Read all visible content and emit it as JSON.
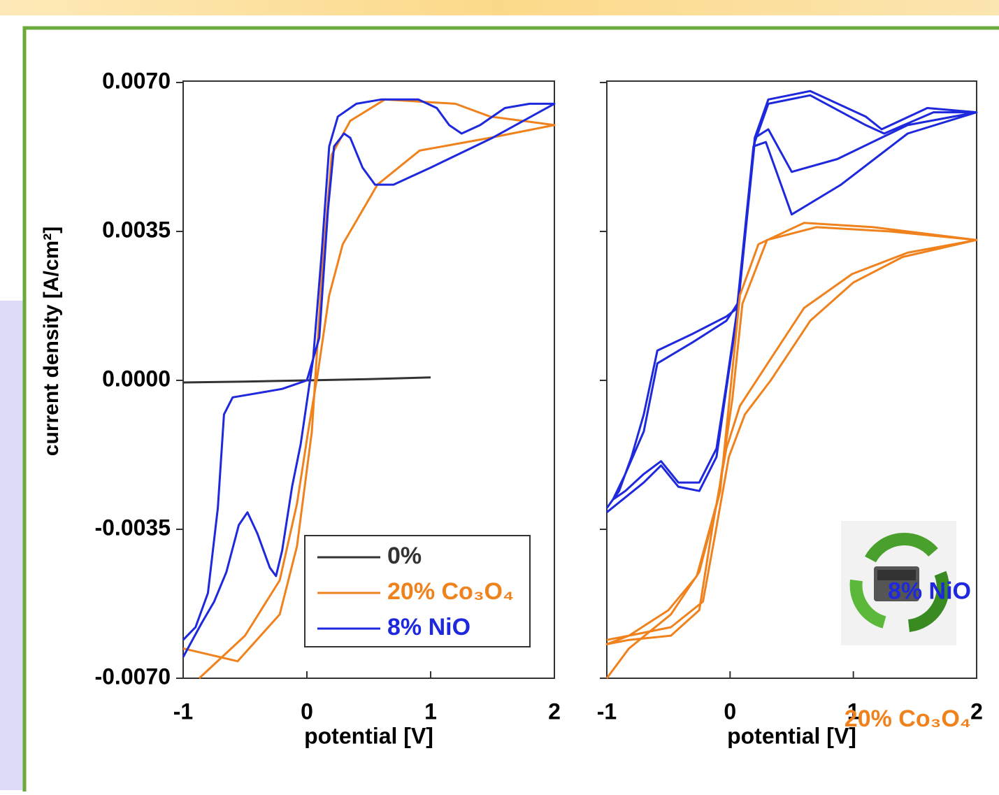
{
  "chart_data": [
    {
      "type": "line",
      "y_label": "current density [A/cm²]",
      "x_label": "potential [V]",
      "xlim": [
        -1,
        2
      ],
      "ylim": [
        -0.007,
        0.007
      ],
      "xticks": [
        -1,
        0,
        1,
        2
      ],
      "yticks": [
        {
          "value": 0.007,
          "label": "0.0070"
        },
        {
          "value": 0.0035,
          "label": "0.0035"
        },
        {
          "value": 0,
          "label": "0.0000"
        },
        {
          "value": -0.0035,
          "label": "-0.0035"
        },
        {
          "value": -0.007,
          "label": "-0.0070"
        }
      ],
      "legend": "lower right",
      "series": [
        {
          "name": "0%",
          "color": "#333333",
          "x": [
            -1,
            -0.5,
            0,
            0.5,
            1
          ],
          "values": [
            -5e-05,
            -3e-05,
            0.0,
            3e-05,
            7e-05
          ]
        },
        {
          "name": "20% Co₃O₄",
          "color": "#f0821e",
          "x": [
            -1,
            -0.56,
            -0.22,
            -0.08,
            0.04,
            0.12,
            0.2,
            0.35,
            0.63,
            1.2,
            1.48,
            2,
            1.48,
            0.91,
            0.57,
            0.29,
            0.18,
            0.09,
            0.01,
            -0.08,
            -0.22,
            -0.5,
            -0.87
          ],
          "values": [
            -0.0063,
            -0.0066,
            -0.0055,
            -0.0039,
            -0.0012,
            0.0024,
            0.0053,
            0.0061,
            0.0066,
            0.0065,
            0.0062,
            0.006,
            0.0057,
            0.0054,
            0.0046,
            0.0032,
            0.002,
            0.0002,
            -0.0012,
            -0.0029,
            -0.0047,
            -0.006,
            -0.007
          ]
        },
        {
          "name": "8% NiO",
          "color": "#1e28dc",
          "x": [
            -1,
            -0.9,
            -0.8,
            -0.72,
            -0.67,
            -0.6,
            -0.4,
            -0.2,
            0,
            0.1,
            0.17,
            0.22,
            0.3,
            0.35,
            0.45,
            0.55,
            0.7,
            1.0,
            1.5,
            2,
            1.8,
            1.6,
            1.4,
            1.25,
            1.15,
            1.05,
            0.9,
            0.6,
            0.4,
            0.25,
            0.18,
            0.12,
            0.05,
            -0.05,
            -0.12,
            -0.2,
            -0.25,
            -0.3,
            -0.4,
            -0.48,
            -0.55,
            -0.65,
            -0.75,
            -0.85,
            -1
          ],
          "values": [
            -0.0061,
            -0.0058,
            -0.005,
            -0.003,
            -0.0008,
            -0.0004,
            -0.0003,
            -0.0002,
            0.0,
            0.001,
            0.004,
            0.0055,
            0.0058,
            0.0057,
            0.005,
            0.0046,
            0.0046,
            0.005,
            0.0057,
            0.0065,
            0.0065,
            0.0064,
            0.006,
            0.0058,
            0.006,
            0.0064,
            0.0066,
            0.0066,
            0.0065,
            0.0062,
            0.0055,
            0.003,
            0.0005,
            -0.0015,
            -0.0025,
            -0.004,
            -0.0046,
            -0.0044,
            -0.0036,
            -0.0031,
            -0.0034,
            -0.0045,
            -0.0052,
            -0.0057,
            -0.0065
          ]
        }
      ]
    },
    {
      "type": "line",
      "x_label": "potential [V]",
      "xlim": [
        -1,
        2
      ],
      "ylim": [
        -0.007,
        0.007
      ],
      "xticks": [
        -1,
        0,
        1,
        2
      ],
      "direct_labels": true,
      "series": [
        {
          "name": "8% NiO",
          "color": "#1e28dc",
          "x": [
            -1,
            -0.9,
            -0.8,
            -0.7,
            -0.59,
            -0.3,
            -0.03,
            0.06,
            0.2,
            0.31,
            0.5,
            0.87,
            1.44,
            2,
            1.6,
            1.23,
            1.1,
            0.65,
            0.31,
            0.2,
            0.14,
            0.06,
            -0.03,
            -0.11,
            -0.25,
            -0.42,
            -0.56,
            -0.7,
            -0.85,
            -0.95,
            -0.85,
            -0.7,
            -0.59,
            -0.3,
            -0.03,
            0.06,
            0.19,
            0.29,
            0.5,
            0.9,
            1.44,
            2,
            1.65,
            1.25,
            1.1,
            0.65,
            0.31,
            0.2,
            0.14,
            0.06,
            -0.03,
            -0.11,
            -0.25,
            -0.42,
            -0.56,
            -0.7,
            -1
          ],
          "values": [
            -0.003,
            -0.0026,
            -0.0018,
            -0.0008,
            0.0007,
            0.0011,
            0.0015,
            0.0017,
            0.0057,
            0.0059,
            0.0049,
            0.0052,
            0.006,
            0.0063,
            0.0064,
            0.0059,
            0.0062,
            0.0068,
            0.0066,
            0.0057,
            0.004,
            0.0017,
            -0.0001,
            -0.0016,
            -0.0024,
            -0.0024,
            -0.0019,
            -0.0022,
            -0.0026,
            -0.0028,
            -0.0022,
            -0.0012,
            0.0004,
            0.0009,
            0.0014,
            0.0018,
            0.0055,
            0.0056,
            0.0039,
            0.0046,
            0.0058,
            0.0063,
            0.0063,
            0.0058,
            0.006,
            0.0067,
            0.0065,
            0.0056,
            0.0039,
            0.0016,
            -0.0002,
            -0.0018,
            -0.0026,
            -0.0025,
            -0.002,
            -0.0024,
            -0.0031
          ]
        },
        {
          "name": "20% Co₃O₄",
          "color": "#f0821e",
          "x": [
            -1,
            -0.82,
            -0.48,
            -0.25,
            -0.08,
            0,
            0.08,
            0.23,
            0.6,
            1.16,
            2,
            1.44,
            0.99,
            0.6,
            0.26,
            0.08,
            -0.03,
            -0.14,
            -0.25,
            -0.48,
            -0.82,
            -1,
            -0.82,
            -0.5,
            -0.27,
            -0.1,
            0.02,
            0.1,
            0.3,
            0.7,
            1.3,
            2,
            1.4,
            1.0,
            0.65,
            0.33,
            0.12,
            -0.01,
            -0.12,
            -0.22,
            -0.48,
            -0.82,
            -1
          ],
          "values": [
            -0.007,
            -0.0063,
            -0.0055,
            -0.0045,
            -0.0026,
            -0.0003,
            0.002,
            0.0032,
            0.0037,
            0.0036,
            0.0033,
            0.003,
            0.0025,
            0.0017,
            0.0002,
            -0.0006,
            -0.0016,
            -0.0034,
            -0.0054,
            -0.006,
            -0.0061,
            -0.0062,
            -0.006,
            -0.0054,
            -0.0046,
            -0.0028,
            -0.0004,
            0.0018,
            0.0033,
            0.0036,
            0.0035,
            0.0033,
            0.0029,
            0.0023,
            0.0014,
            0.0,
            -0.0008,
            -0.0018,
            -0.0036,
            -0.0052,
            -0.0058,
            -0.006,
            -0.0061
          ]
        }
      ]
    }
  ]
}
